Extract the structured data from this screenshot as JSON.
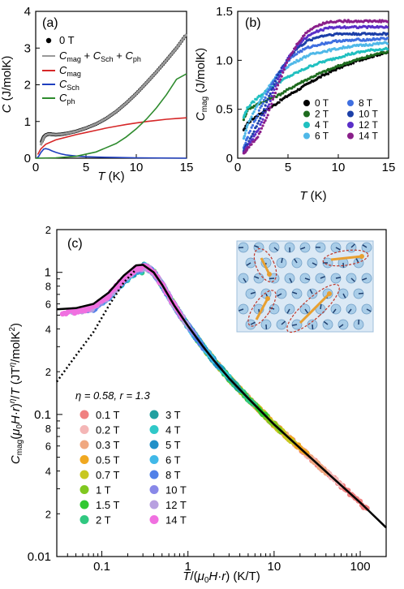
{
  "chart_data": [
    {
      "type": "line",
      "panel_label": "(a)",
      "xlabel": "T (K)",
      "ylabel": "C (J/molK)",
      "xlim": [
        0,
        15
      ],
      "ylim": [
        0,
        4
      ],
      "xticks": [
        0,
        5,
        10,
        15
      ],
      "yticks": [
        0,
        1,
        2,
        3,
        4
      ],
      "grid": false,
      "legend_position": "top-left",
      "series": [
        {
          "name": "0 T",
          "kind": "scatter",
          "color": "#000000",
          "x": [
            0.6,
            0.8,
            1.0,
            1.3,
            1.6,
            2.0,
            2.5,
            3,
            4,
            5,
            6,
            7,
            8,
            9,
            10,
            11,
            12,
            13,
            14,
            15
          ],
          "y": [
            0.45,
            0.58,
            0.63,
            0.66,
            0.65,
            0.64,
            0.65,
            0.67,
            0.73,
            0.82,
            0.93,
            1.08,
            1.27,
            1.5,
            1.76,
            2.05,
            2.35,
            2.67,
            3.0,
            3.38
          ]
        },
        {
          "name": "Cmag + CSch + Cph",
          "kind": "line",
          "color": "#999999",
          "x": [
            0.5,
            0.8,
            1.0,
            1.3,
            1.6,
            2.0,
            2.5,
            3,
            4,
            5,
            6,
            7,
            8,
            9,
            10,
            11,
            12,
            13,
            14,
            15
          ],
          "y": [
            0.35,
            0.57,
            0.63,
            0.66,
            0.65,
            0.64,
            0.65,
            0.67,
            0.73,
            0.82,
            0.93,
            1.08,
            1.27,
            1.5,
            1.76,
            2.05,
            2.35,
            2.67,
            3.0,
            3.38
          ]
        },
        {
          "name": "Cmag",
          "kind": "line",
          "color": "#d62728",
          "x": [
            0.2,
            0.5,
            1,
            2,
            3,
            4,
            5,
            6,
            7,
            8,
            9,
            10,
            11,
            12,
            13,
            14,
            15
          ],
          "y": [
            0.1,
            0.25,
            0.38,
            0.5,
            0.57,
            0.64,
            0.7,
            0.76,
            0.82,
            0.87,
            0.92,
            0.96,
            1.0,
            1.03,
            1.06,
            1.08,
            1.1
          ]
        },
        {
          "name": "CSch",
          "kind": "line",
          "color": "#1f3fbf",
          "x": [
            0.1,
            0.3,
            0.5,
            0.8,
            1.0,
            1.3,
            1.6,
            2,
            2.5,
            3,
            4,
            5,
            6,
            8,
            10,
            15
          ],
          "y": [
            0.0,
            0.05,
            0.15,
            0.25,
            0.26,
            0.24,
            0.2,
            0.16,
            0.12,
            0.09,
            0.06,
            0.04,
            0.03,
            0.02,
            0.01,
            0.0
          ]
        },
        {
          "name": "Cph",
          "kind": "line",
          "color": "#2e8b2e",
          "x": [
            0,
            2,
            4,
            6,
            8,
            9,
            10,
            11,
            12,
            13,
            14,
            15
          ],
          "y": [
            0,
            0.01,
            0.05,
            0.17,
            0.4,
            0.58,
            0.8,
            1.06,
            1.37,
            1.73,
            2.15,
            2.3
          ]
        }
      ]
    },
    {
      "type": "scatter",
      "panel_label": "(b)",
      "xlabel": "T (K)",
      "ylabel": "Cmag (J/molK)",
      "xlim": [
        0,
        15
      ],
      "ylim": [
        0,
        1.5
      ],
      "xticks": [
        0,
        5,
        10,
        15
      ],
      "yticks": [
        0,
        0.5,
        1.0,
        1.5
      ],
      "grid": false,
      "legend_position": "bottom-right",
      "series": [
        {
          "name": "0 T",
          "color": "#000000",
          "x": [
            0.6,
            1,
            2,
            3,
            4,
            5,
            6,
            7,
            8,
            9,
            10,
            11,
            12,
            13,
            14,
            15
          ],
          "y": [
            0.28,
            0.36,
            0.44,
            0.5,
            0.57,
            0.64,
            0.7,
            0.76,
            0.82,
            0.87,
            0.92,
            0.96,
            1.0,
            1.03,
            1.06,
            1.08
          ]
        },
        {
          "name": "2 T",
          "color": "#1e6b1e",
          "x": [
            0.6,
            1,
            2,
            3,
            4,
            5,
            6,
            7,
            8,
            9,
            10,
            11,
            12,
            13,
            14,
            15
          ],
          "y": [
            0.4,
            0.5,
            0.55,
            0.6,
            0.64,
            0.7,
            0.76,
            0.81,
            0.86,
            0.9,
            0.94,
            0.98,
            1.01,
            1.04,
            1.07,
            1.09
          ]
        },
        {
          "name": "4 T",
          "color": "#20c0c0",
          "x": [
            0.6,
            1,
            2,
            3,
            4,
            5,
            6,
            7,
            8,
            9,
            10,
            11,
            12,
            13,
            14,
            15
          ],
          "y": [
            0.42,
            0.52,
            0.62,
            0.7,
            0.77,
            0.83,
            0.88,
            0.93,
            0.97,
            1.0,
            1.03,
            1.06,
            1.08,
            1.1,
            1.11,
            1.12
          ]
        },
        {
          "name": "6 T",
          "color": "#4fb8e8",
          "x": [
            0.6,
            1,
            2,
            3,
            4,
            5,
            6,
            7,
            8,
            9,
            10,
            11,
            12,
            13,
            14,
            15
          ],
          "y": [
            0.2,
            0.35,
            0.55,
            0.72,
            0.85,
            0.94,
            1.0,
            1.05,
            1.08,
            1.1,
            1.12,
            1.14,
            1.15,
            1.16,
            1.17,
            1.18
          ]
        },
        {
          "name": "8 T",
          "color": "#3f6fe0",
          "x": [
            0.6,
            1,
            2,
            3,
            4,
            5,
            6,
            7,
            8,
            9,
            10,
            11,
            12,
            13,
            14,
            15
          ],
          "y": [
            0.1,
            0.22,
            0.45,
            0.68,
            0.87,
            1.0,
            1.08,
            1.13,
            1.16,
            1.18,
            1.2,
            1.2,
            1.21,
            1.21,
            1.22,
            1.22
          ]
        },
        {
          "name": "10 T",
          "color": "#1c3fa8",
          "x": [
            0.6,
            1,
            2,
            3,
            4,
            5,
            6,
            7,
            8,
            9,
            10,
            11,
            12,
            13,
            14,
            15
          ],
          "y": [
            0.08,
            0.15,
            0.35,
            0.6,
            0.85,
            1.02,
            1.13,
            1.2,
            1.24,
            1.26,
            1.27,
            1.27,
            1.27,
            1.27,
            1.27,
            1.27
          ]
        },
        {
          "name": "12 T",
          "color": "#5a2fc8",
          "x": [
            0.6,
            1,
            2,
            3,
            4,
            5,
            6,
            7,
            8,
            9,
            10,
            11,
            12,
            13,
            14,
            15
          ],
          "y": [
            0.06,
            0.12,
            0.28,
            0.52,
            0.8,
            1.02,
            1.16,
            1.25,
            1.3,
            1.33,
            1.34,
            1.34,
            1.34,
            1.34,
            1.34,
            1.34
          ]
        },
        {
          "name": "14 T",
          "color": "#8a1f8a",
          "x": [
            0.6,
            1,
            2,
            3,
            4,
            5,
            6,
            7,
            8,
            9,
            10,
            11,
            12,
            13,
            14,
            15
          ],
          "y": [
            0.05,
            0.1,
            0.22,
            0.45,
            0.75,
            1.0,
            1.18,
            1.3,
            1.36,
            1.39,
            1.4,
            1.4,
            1.4,
            1.4,
            1.4,
            1.4
          ]
        }
      ]
    },
    {
      "type": "scatter",
      "panel_label": "(c)",
      "xlabel": "T/(μ0H·r) (K/T)",
      "ylabel": "Cmag(μ0H·r)^η/T (JT^η/molK^2)",
      "xscale": "log",
      "yscale": "log",
      "xlim": [
        0.03,
        200
      ],
      "ylim": [
        0.01,
        2
      ],
      "xticks": [
        0.1,
        1,
        10,
        100
      ],
      "xtick_labels": [
        "0.1",
        "1",
        "10",
        "100"
      ],
      "yticks": [
        0.01,
        0.1,
        1
      ],
      "ytick_labels": [
        "0.01",
        "0.1",
        "1"
      ],
      "yminor_labels": [
        {
          "value": 2,
          "label": "2"
        },
        {
          "value": 0.8,
          "label": "8"
        },
        {
          "value": 0.6,
          "label": "6"
        },
        {
          "value": 0.4,
          "label": "4"
        },
        {
          "value": 0.2,
          "label": "2"
        },
        {
          "value": 0.08,
          "label": "8"
        },
        {
          "value": 0.06,
          "label": "6"
        },
        {
          "value": 0.04,
          "label": "4"
        },
        {
          "value": 0.02,
          "label": "2"
        }
      ],
      "grid": false,
      "parameter_label": "η = 0.58,   r = 1.3",
      "legend_position": "bottom-left",
      "legend": [
        {
          "name": "0.1 T",
          "color": "#f08080"
        },
        {
          "name": "0.2 T",
          "color": "#f4b6b6"
        },
        {
          "name": "0.3 T",
          "color": "#f0a880"
        },
        {
          "name": "0.5 T",
          "color": "#f0a820"
        },
        {
          "name": "0.7 T",
          "color": "#c8c820"
        },
        {
          "name": "1 T",
          "color": "#80c820"
        },
        {
          "name": "1.5 T",
          "color": "#30c830"
        },
        {
          "name": "2 T",
          "color": "#30c880"
        },
        {
          "name": "3 T",
          "color": "#20a0a0"
        },
        {
          "name": "4 T",
          "color": "#30c8c8"
        },
        {
          "name": "5 T",
          "color": "#2090c8"
        },
        {
          "name": "6 T",
          "color": "#40b8e8"
        },
        {
          "name": "8 T",
          "color": "#5080e8"
        },
        {
          "name": "10 T",
          "color": "#8888e8"
        },
        {
          "name": "12 T",
          "color": "#b8a0e0"
        },
        {
          "name": "14 T",
          "color": "#f070e0"
        }
      ],
      "fit_curve": {
        "color": "#000000",
        "x": [
          0.03,
          0.05,
          0.08,
          0.12,
          0.18,
          0.25,
          0.3,
          0.4,
          0.5,
          0.7,
          1,
          1.5,
          2,
          3,
          5,
          10,
          20,
          50,
          100,
          200
        ],
        "y": [
          0.55,
          0.56,
          0.6,
          0.72,
          0.95,
          1.12,
          1.13,
          1.0,
          0.82,
          0.58,
          0.42,
          0.3,
          0.24,
          0.18,
          0.13,
          0.085,
          0.058,
          0.035,
          0.024,
          0.016
        ]
      },
      "dotted_curve": {
        "color": "#000000",
        "x": [
          0.03,
          0.05,
          0.08,
          0.12,
          0.18,
          0.25
        ],
        "y": [
          0.17,
          0.26,
          0.38,
          0.58,
          0.85,
          1.05
        ]
      }
    }
  ]
}
